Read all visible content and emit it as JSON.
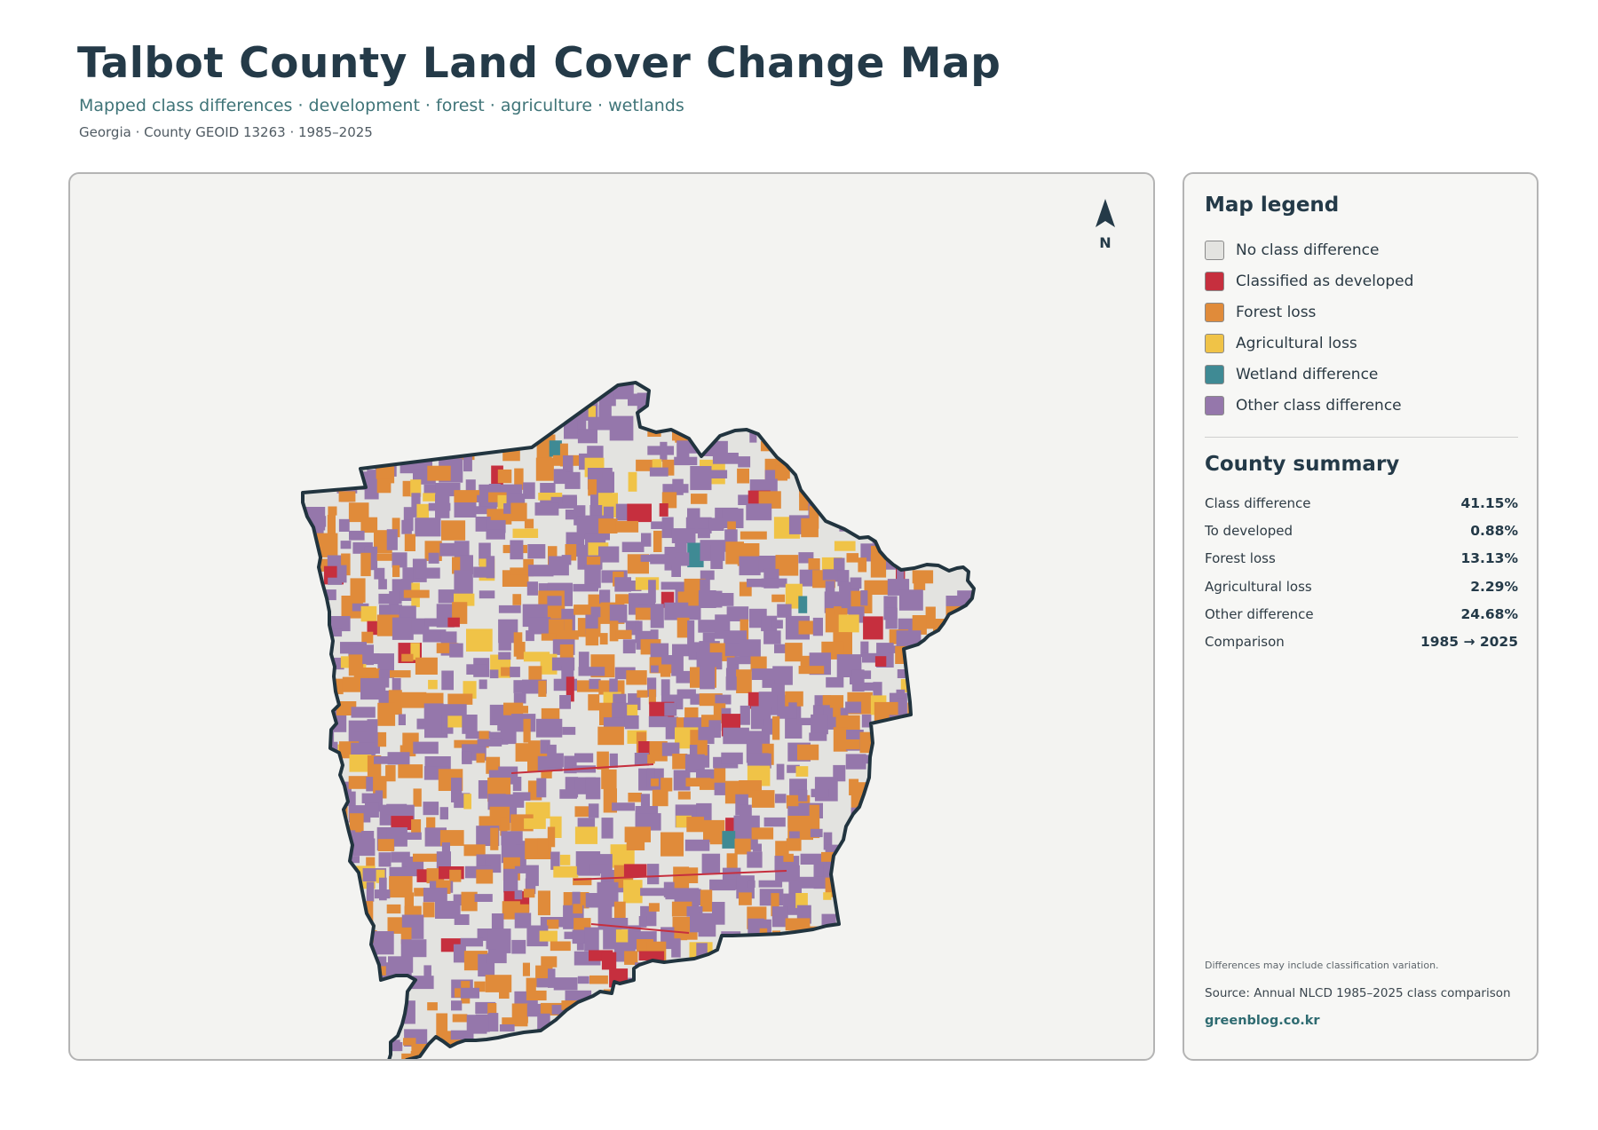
{
  "header": {
    "title": "Talbot County Land Cover Change Map",
    "subtitle": "Mapped class differences · development · forest · agriculture · wetlands",
    "meta": "Georgia · County GEOID 13263 · 1985–2025"
  },
  "map": {
    "north_label": "N",
    "boundary_color": "#21343f",
    "base_color": "#e3e3e0"
  },
  "legend": {
    "title": "Map legend",
    "items": [
      {
        "label": "No class difference",
        "color": "#e3e3e0"
      },
      {
        "label": "Classified as developed",
        "color": "#c62f3e"
      },
      {
        "label": "Forest loss",
        "color": "#e08b3a"
      },
      {
        "label": "Agricultural loss",
        "color": "#f0c347"
      },
      {
        "label": "Wetland difference",
        "color": "#3f8a94"
      },
      {
        "label": "Other class difference",
        "color": "#9577ab"
      }
    ]
  },
  "summary": {
    "title": "County summary",
    "rows": [
      {
        "label": "Class difference",
        "value": "41.15%"
      },
      {
        "label": "To developed",
        "value": "0.88%"
      },
      {
        "label": "Forest loss",
        "value": "13.13%"
      },
      {
        "label": "Agricultural loss",
        "value": "2.29%"
      },
      {
        "label": "Other difference",
        "value": "24.68%"
      },
      {
        "label": "Comparison",
        "value": "1985 → 2025"
      }
    ]
  },
  "footer": {
    "note": "Differences may include classification variation.",
    "source": "Source: Annual NLCD 1985–2025 class comparison",
    "brand": "greenblog.co.kr"
  }
}
